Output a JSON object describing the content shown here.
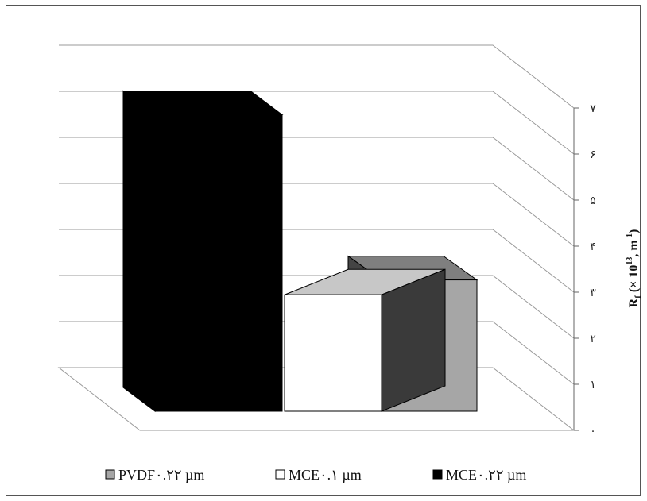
{
  "chart_data": {
    "type": "bar",
    "style": "3d",
    "ylabel_main": "R",
    "ylabel_sub": "f",
    "ylabel_open": " (× 10",
    "ylabel_exp": "13",
    "ylabel_mid": ", m",
    "ylabel_exp2": "-1",
    "ylabel_close": ")",
    "ylim": [
      0,
      7
    ],
    "yticks": [
      "۰",
      "۱",
      "۲",
      "۳",
      "۴",
      "۵",
      "۶",
      "۷"
    ],
    "grid": true,
    "legend_position": "bottom",
    "categories": [
      "MCE۰.۲۲ µm",
      "MCE۰.۱ µm",
      "PVDF۰.۲۲ µm"
    ],
    "values": [
      7.0,
      2.75,
      3.1
    ],
    "colors": {
      "front": [
        "#000000",
        "#ffffff",
        "#a6a6a6"
      ],
      "top": [
        "#000000",
        "#c7c7c7",
        "#7f7f7f"
      ],
      "side": [
        "#000000",
        "#3a3a3a",
        "#444444"
      ]
    },
    "legend": [
      {
        "label": "PVDF۰.۲۲ µm",
        "color": "#a6a6a6"
      },
      {
        "label": "MCE۰.۱ µm",
        "color": "#ffffff"
      },
      {
        "label": "MCE۰.۲۲ µm",
        "color": "#000000"
      }
    ]
  }
}
